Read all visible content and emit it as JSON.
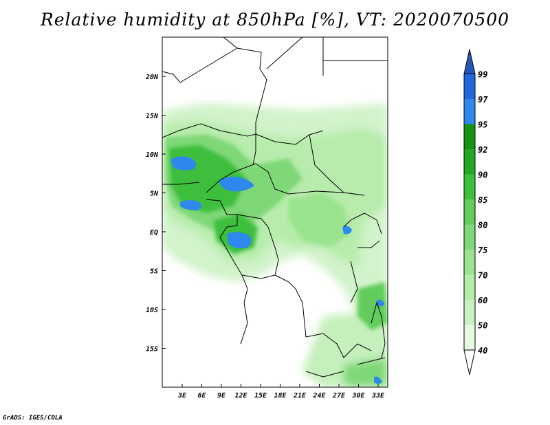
{
  "title": "Relative humidity at 850hPa [%], VT: 2020070500",
  "credit": "GrADS: IGES/COLA",
  "map": {
    "lon_labels": [
      "3E",
      "6E",
      "9E",
      "12E",
      "15E",
      "18E",
      "21E",
      "24E",
      "27E",
      "30E",
      "33E"
    ],
    "lat_labels": [
      "20N",
      "15N",
      "10N",
      "5N",
      "EQ",
      "5S",
      "10S",
      "15S"
    ]
  },
  "colorbar": {
    "levels": [
      "40",
      "50",
      "60",
      "70",
      "75",
      "80",
      "85",
      "90",
      "92",
      "95",
      "97",
      "99"
    ],
    "colors": [
      "#ffffff",
      "#e6fae1",
      "#c8f2c0",
      "#b3eda7",
      "#9ae38f",
      "#7fd877",
      "#62cd5b",
      "#3cbf3c",
      "#23a824",
      "#169214",
      "#2f88ee",
      "#1d69dd",
      "#2457b8"
    ]
  }
}
